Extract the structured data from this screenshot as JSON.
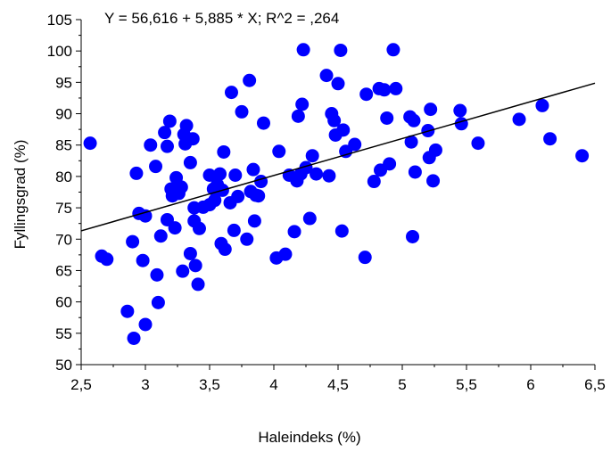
{
  "chart_data": {
    "type": "scatter",
    "annotation": "Y = 56,616 + 5,885 * X; R^2 = ,264",
    "xlabel": "Haleindeks (%)",
    "ylabel": "Fyllingsgrad (%)",
    "xlim": [
      2.5,
      6.5
    ],
    "ylim": [
      50,
      105
    ],
    "x_ticks": [
      "2,5",
      "3",
      "3,5",
      "4",
      "4,5",
      "5",
      "5,5",
      "6",
      "6,5"
    ],
    "y_ticks": [
      "50",
      "55",
      "60",
      "65",
      "70",
      "75",
      "80",
      "85",
      "90",
      "95",
      "100",
      "105"
    ],
    "grid": false,
    "point_color": "#0000FF",
    "line_color": "#000000",
    "regression": {
      "intercept": 56.616,
      "slope": 5.885
    },
    "points": [
      [
        2.57,
        85.3
      ],
      [
        2.66,
        67.3
      ],
      [
        2.7,
        66.8
      ],
      [
        2.86,
        58.5
      ],
      [
        2.9,
        69.6
      ],
      [
        2.91,
        54.2
      ],
      [
        2.93,
        80.5
      ],
      [
        2.95,
        74.1
      ],
      [
        2.98,
        66.6
      ],
      [
        3.0,
        73.7
      ],
      [
        3.0,
        56.4
      ],
      [
        3.04,
        85.0
      ],
      [
        3.08,
        81.6
      ],
      [
        3.09,
        64.3
      ],
      [
        3.1,
        59.9
      ],
      [
        3.12,
        70.5
      ],
      [
        3.15,
        87.0
      ],
      [
        3.17,
        73.1
      ],
      [
        3.17,
        84.8
      ],
      [
        3.19,
        88.8
      ],
      [
        3.2,
        78.0
      ],
      [
        3.21,
        76.9
      ],
      [
        3.23,
        71.8
      ],
      [
        3.24,
        79.8
      ],
      [
        3.26,
        77.3
      ],
      [
        3.28,
        78.3
      ],
      [
        3.29,
        64.9
      ],
      [
        3.3,
        86.7
      ],
      [
        3.31,
        85.2
      ],
      [
        3.32,
        88.1
      ],
      [
        3.35,
        82.2
      ],
      [
        3.35,
        67.7
      ],
      [
        3.37,
        86.0
      ],
      [
        3.38,
        72.9
      ],
      [
        3.38,
        75.0
      ],
      [
        3.39,
        65.8
      ],
      [
        3.41,
        62.8
      ],
      [
        3.42,
        71.7
      ],
      [
        3.45,
        75.1
      ],
      [
        3.5,
        80.2
      ],
      [
        3.5,
        75.5
      ],
      [
        3.53,
        78.0
      ],
      [
        3.54,
        76.2
      ],
      [
        3.56,
        78.7
      ],
      [
        3.58,
        80.4
      ],
      [
        3.59,
        69.3
      ],
      [
        3.6,
        77.8
      ],
      [
        3.61,
        83.9
      ],
      [
        3.62,
        68.4
      ],
      [
        3.66,
        75.8
      ],
      [
        3.67,
        93.4
      ],
      [
        3.69,
        71.4
      ],
      [
        3.7,
        80.2
      ],
      [
        3.72,
        76.8
      ],
      [
        3.75,
        90.3
      ],
      [
        3.79,
        70.0
      ],
      [
        3.81,
        95.3
      ],
      [
        3.82,
        77.6
      ],
      [
        3.84,
        81.1
      ],
      [
        3.85,
        72.9
      ],
      [
        3.86,
        77.0
      ],
      [
        3.88,
        76.9
      ],
      [
        3.9,
        79.2
      ],
      [
        3.92,
        88.5
      ],
      [
        4.02,
        67.0
      ],
      [
        4.04,
        84.0
      ],
      [
        4.09,
        67.6
      ],
      [
        4.12,
        80.2
      ],
      [
        4.16,
        71.2
      ],
      [
        4.18,
        79.3
      ],
      [
        4.19,
        89.6
      ],
      [
        4.21,
        80.4
      ],
      [
        4.22,
        91.5
      ],
      [
        4.23,
        100.2
      ],
      [
        4.25,
        81.4
      ],
      [
        4.28,
        73.3
      ],
      [
        4.3,
        83.3
      ],
      [
        4.33,
        80.4
      ],
      [
        4.41,
        96.1
      ],
      [
        4.43,
        80.1
      ],
      [
        4.45,
        90.0
      ],
      [
        4.47,
        88.9
      ],
      [
        4.48,
        86.6
      ],
      [
        4.5,
        94.8
      ],
      [
        4.52,
        100.1
      ],
      [
        4.53,
        71.3
      ],
      [
        4.54,
        87.4
      ],
      [
        4.56,
        84.0
      ],
      [
        4.63,
        85.1
      ],
      [
        4.71,
        67.1
      ],
      [
        4.72,
        93.1
      ],
      [
        4.78,
        79.2
      ],
      [
        4.82,
        94.0
      ],
      [
        4.83,
        81.0
      ],
      [
        4.86,
        93.8
      ],
      [
        4.88,
        89.3
      ],
      [
        4.9,
        82.0
      ],
      [
        4.93,
        100.2
      ],
      [
        4.95,
        94.0
      ],
      [
        5.06,
        89.5
      ],
      [
        5.07,
        85.5
      ],
      [
        5.08,
        70.4
      ],
      [
        5.09,
        88.9
      ],
      [
        5.1,
        80.7
      ],
      [
        5.2,
        87.3
      ],
      [
        5.21,
        83.0
      ],
      [
        5.22,
        90.7
      ],
      [
        5.24,
        79.3
      ],
      [
        5.26,
        84.2
      ],
      [
        5.45,
        90.5
      ],
      [
        5.46,
        88.4
      ],
      [
        5.59,
        85.3
      ],
      [
        5.91,
        89.1
      ],
      [
        6.09,
        91.3
      ],
      [
        6.15,
        86.0
      ],
      [
        6.4,
        83.3
      ]
    ]
  }
}
